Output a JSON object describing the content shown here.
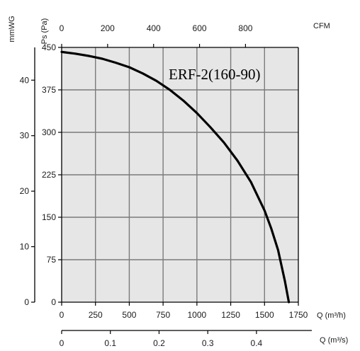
{
  "chart_data": {
    "type": "line",
    "title": "ERF-2(160-90)",
    "series": [
      {
        "name": "ERF-2(160-90)",
        "x": [
          0,
          100,
          200,
          300,
          400,
          500,
          600,
          700,
          800,
          900,
          1000,
          1100,
          1200,
          1300,
          1400,
          1500,
          1550,
          1600,
          1650,
          1680
        ],
        "y": [
          442,
          439,
          435,
          430,
          423,
          415,
          404,
          391,
          375,
          356,
          334,
          309,
          282,
          250,
          212,
          162,
          130,
          92,
          38,
          0
        ]
      }
    ],
    "axes": {
      "left_primary": {
        "label": "Ps (Pa)",
        "range": [
          0,
          450
        ],
        "ticks": [
          "0",
          "75",
          "150",
          "225",
          "300",
          "375",
          "450"
        ]
      },
      "left_secondary": {
        "label": "mmWG",
        "range": [
          0,
          45.9
        ],
        "ticks": [
          "0",
          "10",
          "20",
          "30",
          "40"
        ]
      },
      "top": {
        "label": "CFM",
        "range": [
          0,
          1030
        ],
        "ticks": [
          "0",
          "200",
          "400",
          "600",
          "800"
        ]
      },
      "bottom_primary": {
        "label": "Q (m³/h)",
        "range": [
          0,
          1750
        ],
        "ticks": [
          "0",
          "250",
          "500",
          "750",
          "1000",
          "1250",
          "1500",
          "1750"
        ]
      },
      "bottom_secondary": {
        "label": "Q (m³/s)",
        "range": [
          0,
          0.486
        ],
        "ticks": [
          "0",
          "0.1",
          "0.2",
          "0.3",
          "0.4"
        ]
      }
    },
    "grid": true,
    "colors": {
      "plot_bg": "#e6e6e6",
      "grid": "#7a7a7a",
      "curve": "#000000",
      "axis": "#000000"
    }
  }
}
